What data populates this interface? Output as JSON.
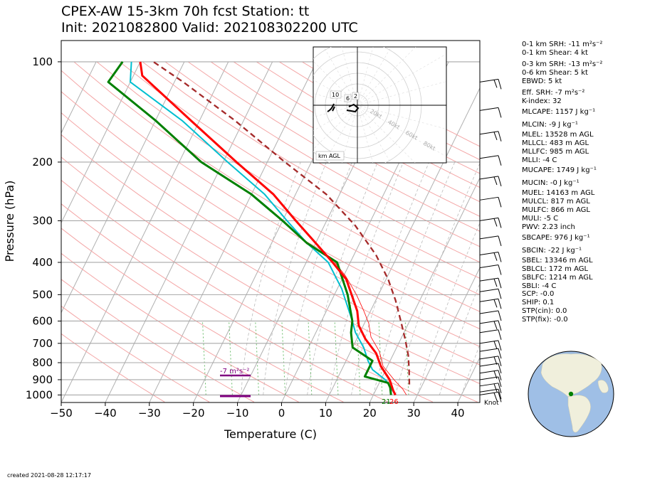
{
  "title_line1": "CPEX-AW 15-3km  70h fcst  Station: tt",
  "title_line2": "Init: 2021082800  Valid: 202108302200 UTC",
  "created": "created 2021-08-28 12:17:17",
  "knot_label": "Knot",
  "colors": {
    "temperature": "#ff0000",
    "dewpoint": "#008000",
    "virtual_temperature": "#00bfd0",
    "parcel": "#a52a2a",
    "isotherm": "#b0b0b0",
    "dry_adiabat": "#f4a6a6",
    "mixing_ratio": "#2ca02c",
    "srh_bar": "#800080"
  },
  "indices": [
    "0-1 km SRH: -11 m²s⁻²",
    "0-1 km Shear: 4 kt",
    "0-3 km SRH: -13 m²s⁻²",
    "0-6 km Shear: 5 kt",
    "EBWD: 5 kt",
    "Eff. SRH: -7 m²s⁻²",
    "K-index: 32",
    "MLCAPE: 1157 J kg⁻¹",
    "MLCIN: -9 J kg⁻¹",
    "MLEL: 13528 m AGL",
    "MLLCL: 483 m AGL",
    "MLLFC: 985 m AGL",
    "MLLI: -4 C",
    "MUCAPE: 1749 J kg⁻¹",
    "MUCIN: -0 J kg⁻¹",
    "MUEL: 14163 m AGL",
    "MULCL: 817 m AGL",
    "MULFC: 866 m AGL",
    "MULI: -5 C",
    "PWV: 2.23 inch",
    "SBCAPE: 976 J kg⁻¹",
    "SBCIN: -22 J kg⁻¹",
    "SBEL: 13346 m AGL",
    "SBLCL: 172 m AGL",
    "SBLFC: 1214 m AGL",
    "SBLI: -4 C",
    "SCP: -0.0",
    "SHIP: 0.1",
    "STP(cin): 0.0",
    "STP(fix): -0.0"
  ],
  "chart_data": {
    "type": "line",
    "subtype": "skew-T log-P diagram",
    "xlabel": "Temperature (C)",
    "ylabel": "Pressure (hPa)",
    "xlim": [
      -50,
      45
    ],
    "ylim": [
      1050,
      100
    ],
    "y_scale": "log",
    "x_ticks": [
      -50,
      -40,
      -30,
      -20,
      -10,
      0,
      10,
      20,
      30,
      40
    ],
    "y_ticks": [
      100,
      200,
      300,
      400,
      500,
      600,
      700,
      800,
      900,
      1000
    ],
    "grid": true,
    "series": [
      {
        "key": "T",
        "points": [
          [
            25.0,
            1000
          ],
          [
            24.0,
            970
          ],
          [
            22.0,
            900
          ],
          [
            18.5,
            820
          ],
          [
            16.0,
            750
          ],
          [
            12.0,
            680
          ],
          [
            9.0,
            620
          ],
          [
            7.0,
            560
          ],
          [
            1.0,
            450
          ],
          [
            -4.0,
            400
          ],
          [
            -10.0,
            350
          ],
          [
            -17.0,
            300
          ],
          [
            -25.0,
            250
          ],
          [
            -37.0,
            200
          ],
          [
            -52.0,
            150
          ],
          [
            -68.0,
            110
          ],
          [
            -70.0,
            100
          ]
        ]
      },
      {
        "key": "Td",
        "points": [
          [
            24.0,
            1000
          ],
          [
            23.0,
            950
          ],
          [
            22.0,
            920
          ],
          [
            16.0,
            880
          ],
          [
            16.0,
            820
          ],
          [
            16.0,
            790
          ],
          [
            10.0,
            720
          ],
          [
            8.0,
            650
          ],
          [
            7.0,
            600
          ],
          [
            3.0,
            500
          ],
          [
            -3.0,
            400
          ],
          [
            -12.0,
            350
          ],
          [
            -20.0,
            300
          ],
          [
            -30.0,
            250
          ],
          [
            -45.0,
            200
          ],
          [
            -60.0,
            150
          ],
          [
            -75.0,
            115
          ],
          [
            -74.0,
            100
          ]
        ]
      },
      {
        "key": "Tv",
        "points": [
          [
            24.0,
            975
          ],
          [
            23.5,
            960
          ],
          [
            21.0,
            900
          ],
          [
            17.0,
            840
          ],
          [
            15.0,
            790
          ],
          [
            12.5,
            720
          ],
          [
            9.0,
            650
          ],
          [
            7.0,
            600
          ],
          [
            1.0,
            480
          ],
          [
            -5.0,
            400
          ],
          [
            -12.0,
            350
          ],
          [
            -19.0,
            300
          ],
          [
            -27.0,
            250
          ],
          [
            -39.0,
            200
          ],
          [
            -54.0,
            150
          ],
          [
            -70.0,
            115
          ],
          [
            -72.0,
            100
          ]
        ]
      },
      {
        "key": "parcel",
        "points": [
          [
            27.0,
            930
          ],
          [
            25.5,
            850
          ],
          [
            23.5,
            760
          ],
          [
            21.0,
            680
          ],
          [
            18.0,
            600
          ],
          [
            14.5,
            520
          ],
          [
            10.5,
            450
          ],
          [
            5.0,
            380
          ],
          [
            -3.0,
            310
          ],
          [
            -13.0,
            250
          ],
          [
            -26.0,
            200
          ],
          [
            -42.0,
            150
          ],
          [
            -58.0,
            115
          ],
          [
            -67.0,
            100
          ]
        ]
      },
      {
        "key": "T_thin",
        "points": [
          [
            27.5,
            1000
          ],
          [
            26.0,
            960
          ],
          [
            23.0,
            900
          ],
          [
            19.0,
            820
          ],
          [
            16.5,
            740
          ],
          [
            13.0,
            670
          ],
          [
            11.0,
            610
          ],
          [
            8.5,
            560
          ],
          [
            5.0,
            500
          ],
          [
            0.5,
            440
          ],
          [
            -3.5,
            400
          ]
        ]
      }
    ],
    "surface_labels": [
      {
        "text": "21",
        "value": 21,
        "color": "green"
      },
      {
        "text": "26",
        "value": 26,
        "color": "red"
      }
    ],
    "srh_annotation": "-7 m²s⁻²",
    "hodograph": {
      "km_labels": [
        "10",
        "6",
        "2"
      ],
      "ring_labels": [
        "20kt",
        "40kt",
        "60kt",
        "80kt"
      ],
      "legend": "km AGL"
    }
  }
}
